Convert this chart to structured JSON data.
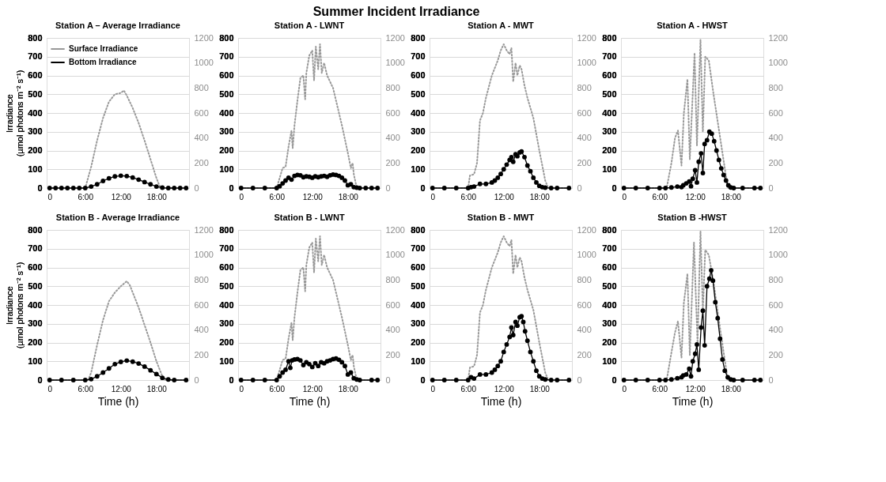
{
  "chart_data": [
    {
      "type": "line",
      "title": "Station A – Average Irradiance",
      "ylabel": "Irradiance\n(µmol photons m⁻² s⁻¹)",
      "annotations": [
        "Summer Incident Irradiance"
      ],
      "legend": "top left",
      "grid": "y",
      "xlim": [
        -0.5,
        23.5
      ],
      "xticks": [
        0,
        {
          "value": 6,
          "label": "6:00"
        },
        {
          "value": 12,
          "label": "12:00"
        },
        {
          "value": 18,
          "label": "18:00"
        }
      ],
      "ylim": [
        0,
        800
      ],
      "yticks": [
        0,
        100,
        200,
        300,
        400,
        500,
        600,
        700,
        800
      ],
      "y2lim": [
        0,
        1200
      ],
      "y2ticks": [
        0,
        200,
        400,
        600,
        800,
        1000,
        1200
      ],
      "series": [
        {
          "name": "Surface Irradiance",
          "axis": "y2",
          "color": "#999999",
          "line_style": "dotted",
          "marker": "none",
          "x": [
            0,
            2,
            4,
            6,
            7,
            8,
            9,
            10,
            11,
            12,
            12.5,
            13,
            14,
            15,
            16,
            17,
            18,
            18.5,
            19,
            21,
            23
          ],
          "values": [
            0,
            0,
            0,
            0,
            170,
            380,
            560,
            690,
            750,
            760,
            780,
            740,
            640,
            520,
            380,
            230,
            80,
            20,
            0,
            0,
            0
          ]
        },
        {
          "name": "Bottom Irradiance",
          "color": "#000000",
          "line_style": "solid",
          "marker": "circle",
          "x": [
            0,
            1,
            2,
            3,
            4,
            5,
            6,
            7,
            8,
            9,
            10,
            11,
            12,
            13,
            14,
            15,
            16,
            17,
            18,
            19,
            20,
            21,
            22,
            23
          ],
          "values": [
            0,
            0,
            0,
            0,
            0,
            0,
            0,
            8,
            20,
            38,
            52,
            62,
            66,
            64,
            56,
            45,
            32,
            20,
            8,
            2,
            0,
            0,
            0,
            0
          ]
        }
      ]
    },
    {
      "type": "line",
      "title": "Station A - LWNT",
      "grid": "y",
      "xlim": [
        -0.5,
        23.5
      ],
      "xticks": [
        0,
        {
          "value": 6,
          "label": "6:00"
        },
        {
          "value": 12,
          "label": "12:00"
        },
        {
          "value": 18,
          "label": "18:00"
        }
      ],
      "ylim": [
        0,
        800
      ],
      "yticks": [
        0,
        100,
        200,
        300,
        400,
        500,
        600,
        700,
        800
      ],
      "y2lim": [
        0,
        1200
      ],
      "y2ticks": [
        0,
        200,
        400,
        600,
        800,
        1000,
        1200
      ],
      "series": [
        {
          "axis": "y2",
          "color": "#999999",
          "line_style": "dotted",
          "marker": "none",
          "x": [
            0,
            2,
            4,
            6,
            6.5,
            7,
            7.5,
            8,
            8.5,
            8.7,
            9,
            9.5,
            10,
            10.5,
            10.8,
            11,
            11.5,
            12,
            12.3,
            12.6,
            13,
            13.3,
            13.6,
            14,
            14.5,
            15,
            15.5,
            16,
            17,
            18,
            18.5,
            18.8,
            19,
            19.5,
            21,
            23
          ],
          "values": [
            0,
            0,
            0,
            0,
            80,
            160,
            170,
            330,
            460,
            320,
            500,
            700,
            880,
            900,
            710,
            920,
            1060,
            1100,
            860,
            1130,
            950,
            1150,
            920,
            1000,
            900,
            850,
            800,
            700,
            500,
            280,
            160,
            200,
            110,
            0,
            0,
            0
          ]
        },
        {
          "color": "#000000",
          "line_style": "solid",
          "marker": "circle",
          "x": [
            0,
            2,
            4,
            6,
            6.5,
            7,
            7.5,
            8,
            8.5,
            9,
            9.5,
            10,
            10.5,
            11,
            11.5,
            12,
            12.5,
            13,
            13.5,
            14,
            14.5,
            15,
            15.5,
            16,
            16.5,
            17,
            17.5,
            18,
            18.5,
            19,
            19.5,
            20,
            21,
            22,
            23
          ],
          "values": [
            0,
            0,
            0,
            0,
            10,
            25,
            40,
            55,
            45,
            65,
            70,
            68,
            58,
            62,
            60,
            55,
            62,
            58,
            62,
            65,
            60,
            68,
            72,
            70,
            65,
            55,
            40,
            15,
            20,
            5,
            2,
            0,
            0,
            0,
            0
          ]
        }
      ]
    },
    {
      "type": "line",
      "title": "Station A - MWT",
      "grid": "y",
      "xlim": [
        -0.5,
        23.5
      ],
      "xticks": [
        0,
        {
          "value": 6,
          "label": "6:00"
        },
        {
          "value": 12,
          "label": "12:00"
        },
        {
          "value": 18,
          "label": "18:00"
        }
      ],
      "ylim": [
        0,
        800
      ],
      "yticks": [
        0,
        100,
        200,
        300,
        400,
        500,
        600,
        700,
        800
      ],
      "y2lim": [
        0,
        1200
      ],
      "y2ticks": [
        0,
        200,
        400,
        600,
        800,
        1000,
        1200
      ],
      "series": [
        {
          "axis": "y2",
          "color": "#999999",
          "line_style": "dotted",
          "marker": "none",
          "x": [
            0,
            2,
            4,
            6,
            6.3,
            7,
            7.5,
            8,
            8.5,
            9,
            10,
            11,
            11.5,
            12,
            12.5,
            13,
            13.3,
            13.6,
            14,
            14.3,
            14.7,
            15,
            15.5,
            16,
            17,
            18,
            18.5,
            19,
            19.5,
            21,
            23
          ],
          "values": [
            0,
            0,
            0,
            0,
            100,
            110,
            200,
            540,
            600,
            720,
            900,
            1020,
            1100,
            1150,
            1100,
            1070,
            1120,
            850,
            1000,
            900,
            980,
            950,
            820,
            720,
            560,
            300,
            180,
            60,
            0,
            0,
            0
          ]
        },
        {
          "color": "#000000",
          "line_style": "solid",
          "marker": "circle",
          "x": [
            0,
            2,
            4,
            6,
            6.5,
            7,
            8,
            9,
            10,
            10.5,
            11,
            11.5,
            12,
            12.5,
            13,
            13.3,
            13.6,
            14,
            14.3,
            14.7,
            15,
            15.5,
            16,
            16.5,
            17,
            17.5,
            18,
            18.5,
            19,
            20,
            21,
            23
          ],
          "values": [
            0,
            0,
            0,
            0,
            5,
            8,
            22,
            22,
            30,
            40,
            55,
            75,
            100,
            125,
            150,
            165,
            140,
            180,
            170,
            190,
            195,
            165,
            120,
            90,
            55,
            30,
            12,
            5,
            2,
            0,
            0,
            0
          ]
        }
      ]
    },
    {
      "type": "line",
      "title": "Station A - HWST",
      "grid": "y",
      "xlim": [
        -0.5,
        23.5
      ],
      "xticks": [
        0,
        {
          "value": 6,
          "label": "6:00"
        },
        {
          "value": 12,
          "label": "12:00"
        },
        {
          "value": 18,
          "label": "18:00"
        }
      ],
      "ylim": [
        0,
        800
      ],
      "yticks": [
        0,
        100,
        200,
        300,
        400,
        500,
        600,
        700,
        800
      ],
      "y2lim": [
        0,
        1200
      ],
      "y2ticks": [
        0,
        200,
        400,
        600,
        800,
        1000,
        1200
      ],
      "series": [
        {
          "axis": "y2",
          "color": "#999999",
          "line_style": "dotted",
          "marker": "none",
          "x": [
            0,
            2,
            4,
            6,
            7.2,
            8,
            8.6,
            9.1,
            9.7,
            10.1,
            10.7,
            11.1,
            11.9,
            12.3,
            12.9,
            13.3,
            13.7,
            14.3,
            15.1,
            16.3,
            17.5,
            19,
            21,
            23
          ],
          "values": [
            0,
            0,
            0,
            0,
            0,
            200,
            400,
            460,
            180,
            600,
            870,
            230,
            1080,
            340,
            1185,
            450,
            1050,
            1020,
            750,
            375,
            0,
            0,
            0,
            0
          ]
        },
        {
          "color": "#000000",
          "line_style": "solid",
          "marker": "circle",
          "x": [
            0,
            2,
            4,
            6,
            7,
            8,
            9,
            9.7,
            10,
            10.5,
            11,
            11.3,
            11.6,
            12,
            12.3,
            12.6,
            13,
            13.3,
            13.6,
            14,
            14.4,
            14.8,
            15.2,
            15.6,
            16,
            16.4,
            16.8,
            17.2,
            17.6,
            18,
            18.5,
            20,
            22,
            23
          ],
          "values": [
            0,
            0,
            0,
            0,
            0,
            3,
            8,
            5,
            15,
            25,
            35,
            10,
            50,
            95,
            30,
            140,
            185,
            80,
            235,
            255,
            300,
            290,
            250,
            200,
            150,
            105,
            70,
            40,
            15,
            3,
            0,
            0,
            0,
            0
          ]
        }
      ]
    },
    {
      "type": "line",
      "title": "Station B - Average Irradiance",
      "ylabel": "Irradiance\n(µmol photons m⁻² s⁻¹)",
      "xlabel": "Time (h)",
      "grid": "y",
      "xlim": [
        -0.5,
        23.5
      ],
      "xticks": [
        0,
        {
          "value": 6,
          "label": "6:00"
        },
        {
          "value": 12,
          "label": "12:00"
        },
        {
          "value": 18,
          "label": "18:00"
        }
      ],
      "ylim": [
        0,
        800
      ],
      "yticks": [
        0,
        100,
        200,
        300,
        400,
        500,
        600,
        700,
        800
      ],
      "y2lim": [
        0,
        1200
      ],
      "y2ticks": [
        0,
        200,
        400,
        600,
        800,
        1000,
        1200
      ],
      "series": [
        {
          "axis": "y2",
          "color": "#999999",
          "line_style": "dotted",
          "marker": "none",
          "x": [
            0,
            2,
            4,
            6,
            6.5,
            7,
            8,
            9,
            10,
            11,
            12,
            13,
            13.5,
            14,
            15,
            16,
            17,
            18,
            19,
            19.5,
            21,
            23
          ],
          "values": [
            0,
            0,
            0,
            0,
            0,
            60,
            280,
            480,
            630,
            700,
            750,
            790,
            760,
            700,
            580,
            440,
            300,
            150,
            30,
            0,
            0,
            0
          ]
        },
        {
          "color": "#000000",
          "line_style": "solid",
          "marker": "circle",
          "x": [
            0,
            2,
            4,
            6,
            7,
            8,
            9,
            10,
            11,
            12,
            13,
            14,
            15,
            16,
            17,
            18,
            19,
            20,
            21,
            23
          ],
          "values": [
            0,
            0,
            0,
            0,
            5,
            20,
            40,
            62,
            85,
            97,
            104,
            98,
            88,
            72,
            52,
            32,
            12,
            3,
            0,
            0
          ]
        }
      ]
    },
    {
      "type": "line",
      "title": "Station B - LWNT",
      "xlabel": "Time (h)",
      "grid": "y",
      "xlim": [
        -0.5,
        23.5
      ],
      "xticks": [
        0,
        {
          "value": 6,
          "label": "6:00"
        },
        {
          "value": 12,
          "label": "12:00"
        },
        {
          "value": 18,
          "label": "18:00"
        }
      ],
      "ylim": [
        0,
        800
      ],
      "yticks": [
        0,
        100,
        200,
        300,
        400,
        500,
        600,
        700,
        800
      ],
      "y2lim": [
        0,
        1200
      ],
      "y2ticks": [
        0,
        200,
        400,
        600,
        800,
        1000,
        1200
      ],
      "series": [
        {
          "axis": "y2",
          "color": "#999999",
          "line_style": "dotted",
          "marker": "none",
          "x": [
            0,
            2,
            4,
            6,
            6.5,
            7,
            7.5,
            8,
            8.5,
            8.7,
            9,
            9.5,
            10,
            10.5,
            10.8,
            11,
            11.5,
            12,
            12.3,
            12.6,
            13,
            13.3,
            13.6,
            14,
            14.5,
            15,
            15.5,
            16,
            17,
            18,
            18.5,
            18.8,
            19,
            19.5,
            21,
            23
          ],
          "values": [
            0,
            0,
            0,
            0,
            80,
            160,
            170,
            330,
            460,
            320,
            500,
            700,
            880,
            900,
            710,
            920,
            1060,
            1100,
            860,
            1130,
            950,
            1150,
            920,
            1000,
            900,
            850,
            800,
            700,
            500,
            280,
            160,
            200,
            110,
            0,
            0,
            0
          ]
        },
        {
          "color": "#000000",
          "line_style": "solid",
          "marker": "circle",
          "x": [
            0,
            2,
            4,
            6,
            6.5,
            7,
            7.5,
            8,
            8.3,
            8.6,
            9,
            9.5,
            10,
            10.5,
            11,
            11.5,
            12,
            12.5,
            13,
            13.5,
            14,
            14.5,
            15,
            15.5,
            16,
            16.5,
            17,
            17.5,
            18,
            18.5,
            19,
            19.5,
            20,
            22,
            23
          ],
          "values": [
            0,
            0,
            0,
            0,
            20,
            40,
            55,
            100,
            65,
            105,
            110,
            112,
            105,
            80,
            95,
            85,
            70,
            90,
            75,
            95,
            90,
            100,
            105,
            112,
            115,
            108,
            95,
            75,
            30,
            40,
            10,
            3,
            0,
            0,
            0
          ]
        }
      ]
    },
    {
      "type": "line",
      "title": "Station B - MWT",
      "xlabel": "Time (h)",
      "grid": "y",
      "xlim": [
        -0.5,
        23.5
      ],
      "xticks": [
        0,
        {
          "value": 6,
          "label": "6:00"
        },
        {
          "value": 12,
          "label": "12:00"
        },
        {
          "value": 18,
          "label": "18:00"
        }
      ],
      "ylim": [
        0,
        800
      ],
      "yticks": [
        0,
        100,
        200,
        300,
        400,
        500,
        600,
        700,
        800
      ],
      "y2lim": [
        0,
        1200
      ],
      "y2ticks": [
        0,
        200,
        400,
        600,
        800,
        1000,
        1200
      ],
      "series": [
        {
          "axis": "y2",
          "color": "#999999",
          "line_style": "dotted",
          "marker": "none",
          "x": [
            0,
            2,
            4,
            6,
            6.3,
            7,
            7.5,
            8,
            8.5,
            9,
            10,
            11,
            11.5,
            12,
            12.5,
            13,
            13.3,
            13.6,
            14,
            14.3,
            14.7,
            15,
            15.5,
            16,
            17,
            18,
            18.5,
            19,
            19.5,
            21,
            23
          ],
          "values": [
            0,
            0,
            0,
            0,
            100,
            110,
            200,
            540,
            600,
            720,
            900,
            1020,
            1100,
            1150,
            1100,
            1070,
            1120,
            850,
            1000,
            900,
            980,
            950,
            820,
            720,
            560,
            300,
            180,
            60,
            0,
            0,
            0
          ]
        },
        {
          "color": "#000000",
          "line_style": "solid",
          "marker": "circle",
          "x": [
            0,
            2,
            4,
            6,
            6.5,
            7,
            8,
            9,
            10,
            10.5,
            11,
            11.5,
            12,
            12.5,
            13,
            13.3,
            13.6,
            14,
            14.3,
            14.7,
            15,
            15.3,
            15.6,
            16,
            16.5,
            17,
            17.5,
            18,
            18.5,
            19,
            20,
            21,
            23
          ],
          "values": [
            0,
            0,
            0,
            0,
            15,
            8,
            30,
            30,
            40,
            55,
            75,
            100,
            150,
            190,
            230,
            280,
            240,
            310,
            290,
            335,
            340,
            310,
            260,
            210,
            150,
            100,
            50,
            20,
            8,
            3,
            0,
            0,
            0
          ]
        }
      ]
    },
    {
      "type": "line",
      "title": "Station B -HWST",
      "xlabel": "Time (h)",
      "grid": "y",
      "xlim": [
        -0.5,
        23.5
      ],
      "xticks": [
        0,
        {
          "value": 6,
          "label": "6:00"
        },
        {
          "value": 12,
          "label": "12:00"
        },
        {
          "value": 18,
          "label": "18:00"
        }
      ],
      "ylim": [
        0,
        800
      ],
      "yticks": [
        0,
        100,
        200,
        300,
        400,
        500,
        600,
        700,
        800
      ],
      "y2lim": [
        0,
        1200
      ],
      "y2ticks": [
        0,
        200,
        400,
        600,
        800,
        1000,
        1200
      ],
      "series": [
        {
          "axis": "y2",
          "color": "#999999",
          "line_style": "dotted",
          "marker": "none",
          "x": [
            0,
            2,
            4,
            6,
            7.2,
            8,
            8.6,
            9.1,
            9.7,
            10.1,
            10.7,
            11.1,
            11.8,
            12.4,
            12.9,
            13.3,
            13.7,
            14.3,
            15.1,
            16.3,
            17.5,
            19,
            21,
            23
          ],
          "values": [
            0,
            0,
            0,
            0,
            0,
            220,
            380,
            470,
            180,
            620,
            850,
            200,
            1100,
            300,
            1190,
            550,
            1040,
            1000,
            780,
            380,
            0,
            0,
            0,
            0
          ]
        },
        {
          "color": "#000000",
          "line_style": "solid",
          "marker": "circle",
          "x": [
            0,
            2,
            4,
            6,
            7,
            8,
            9,
            9.7,
            10,
            10.5,
            11,
            11.3,
            11.6,
            12,
            12.3,
            12.6,
            13,
            13.3,
            13.6,
            14,
            14.4,
            14.7,
            15,
            15.4,
            15.8,
            16.2,
            16.6,
            17,
            17.5,
            18,
            18.5,
            20,
            22,
            23
          ],
          "values": [
            0,
            0,
            0,
            0,
            0,
            3,
            10,
            15,
            25,
            30,
            60,
            20,
            100,
            140,
            190,
            55,
            280,
            370,
            185,
            500,
            540,
            585,
            530,
            415,
            330,
            220,
            110,
            50,
            15,
            3,
            0,
            0,
            0,
            0
          ]
        }
      ]
    }
  ]
}
